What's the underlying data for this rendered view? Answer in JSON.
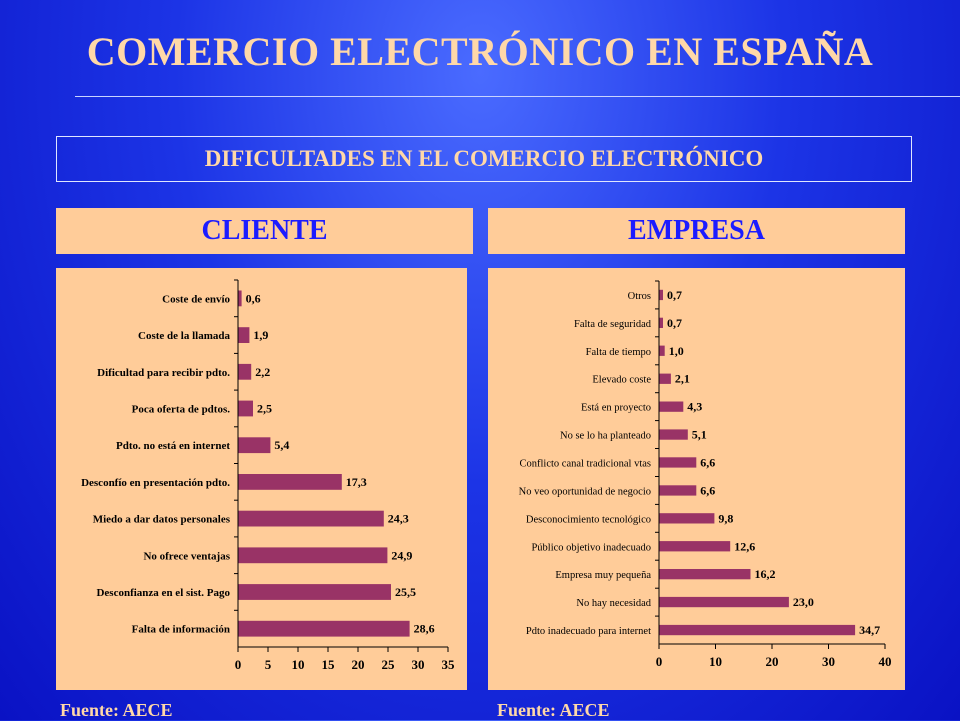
{
  "title": "COMERCIO ELECTRÓNICO EN ESPAÑA",
  "subtitle": "DIFICULTADES EN EL COMERCIO ELECTRÓNICO",
  "sections": {
    "left": "CLIENTE",
    "right": "EMPRESA"
  },
  "sources": {
    "left": "Fuente: AECE",
    "right": "Fuente: AECE"
  },
  "colors": {
    "bar": "#993366",
    "panel": "#ffcc99",
    "header_text": "#1c1cff",
    "title_text": "#ffd8a8"
  },
  "chart_data": [
    {
      "type": "bar",
      "orientation": "horizontal",
      "panel": "CLIENTE",
      "categories": [
        "Coste de envío",
        "Coste de la llamada",
        "Dificultad para recibir pdto.",
        "Poca oferta de pdtos.",
        "Pdto. no está en internet",
        "Desconfío en presentación pdto.",
        "Miedo a dar datos personales",
        "No ofrece ventajas",
        "Desconfianza en el sist. Pago",
        "Falta de información"
      ],
      "values": [
        0.6,
        1.9,
        2.2,
        2.5,
        5.4,
        17.3,
        24.3,
        24.9,
        25.5,
        28.6
      ],
      "value_labels": [
        "0,6",
        "1,9",
        "2,2",
        "2,5",
        "5,4",
        "17,3",
        "24,3",
        "24,9",
        "25,5",
        "28,6"
      ],
      "xlim": [
        0,
        35
      ],
      "xticks": [
        0,
        5,
        10,
        15,
        20,
        25,
        30,
        35
      ],
      "grid": false
    },
    {
      "type": "bar",
      "orientation": "horizontal",
      "panel": "EMPRESA",
      "categories": [
        "Otros",
        "Falta de seguridad",
        "Falta de tiempo",
        "Elevado coste",
        "Está en proyecto",
        "No se lo ha planteado",
        "Conflicto canal tradicional vtas",
        "No veo oportunidad de negocio",
        "Desconocimiento tecnológico",
        "Público objetivo inadecuado",
        "Empresa muy pequeña",
        "No hay necesidad",
        "Pdto inadecuado para internet"
      ],
      "values": [
        0.7,
        0.7,
        1.0,
        2.1,
        4.3,
        5.1,
        6.6,
        6.6,
        9.8,
        12.6,
        16.2,
        23.0,
        34.7
      ],
      "value_labels": [
        "0,7",
        "0,7",
        "1,0",
        "2,1",
        "4,3",
        "5,1",
        "6,6",
        "6,6",
        "9,8",
        "12,6",
        "16,2",
        "23,0",
        "34,7"
      ],
      "xlim": [
        0,
        40
      ],
      "xticks": [
        0,
        10,
        20,
        30,
        40
      ],
      "grid": false
    }
  ]
}
